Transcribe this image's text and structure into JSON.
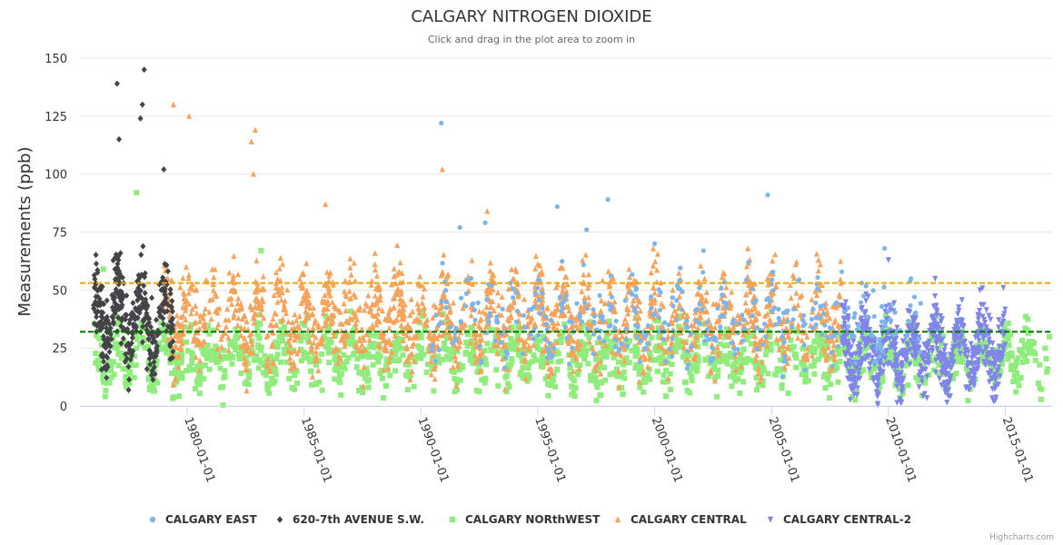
{
  "chart_data": {
    "type": "scatter",
    "title": "CALGARY NITROGEN DIOXIDE",
    "subtitle": "Click and drag in the plot area to zoom in",
    "ylabel": "Measurements (ppb)",
    "xlabel": "",
    "ylim": [
      0,
      150
    ],
    "yticks": [
      0,
      25,
      50,
      75,
      100,
      125,
      150
    ],
    "xlim": [
      "1975-06-01",
      "2017-01-01"
    ],
    "xticks": [
      "1980-01-01",
      "1985-01-01",
      "1990-01-01",
      "1995-01-01",
      "2000-01-01",
      "2005-01-01",
      "2010-01-01",
      "2015-01-01"
    ],
    "grid": true,
    "legend_position": "bottom-center",
    "plot_lines": [
      {
        "value": 53,
        "color": "#f0a30a",
        "style": "dashed"
      },
      {
        "value": 32,
        "color": "#007700",
        "style": "dashed"
      }
    ],
    "series": [
      {
        "name": "CALGARY EAST",
        "color": "#7cb5ec",
        "marker": "circle",
        "x_range": [
          "1990-06-01",
          "2011-06-01"
        ],
        "typical_range": [
          15,
          55
        ],
        "peaks": [
          {
            "x": "1990-11-15",
            "y": 122
          },
          {
            "x": "1991-09-01",
            "y": 77
          },
          {
            "x": "1992-10-01",
            "y": 79
          },
          {
            "x": "1995-11-01",
            "y": 86
          },
          {
            "x": "1997-02-01",
            "y": 76
          },
          {
            "x": "1998-01-01",
            "y": 89
          },
          {
            "x": "2000-01-01",
            "y": 70
          },
          {
            "x": "2002-02-01",
            "y": 67
          },
          {
            "x": "2004-11-01",
            "y": 91
          },
          {
            "x": "2009-11-01",
            "y": 68
          }
        ]
      },
      {
        "name": "620-7th AVENUE S.W.",
        "color": "#434348",
        "marker": "diamond",
        "x_range": [
          "1976-01-01",
          "1979-06-01"
        ],
        "typical_range": [
          12,
          60
        ],
        "peaks": [
          {
            "x": "1977-01-01",
            "y": 139
          },
          {
            "x": "1978-03-01",
            "y": 145
          },
          {
            "x": "1978-02-01",
            "y": 130
          },
          {
            "x": "1978-01-01",
            "y": 124
          },
          {
            "x": "1977-02-01",
            "y": 115
          },
          {
            "x": "1979-01-01",
            "y": 102
          }
        ]
      },
      {
        "name": "CALGARY NORthWEST",
        "color": "#90ed7d",
        "marker": "square",
        "x_range": [
          "1976-01-01",
          "2016-12-01"
        ],
        "typical_range": [
          3,
          35
        ],
        "peaks": [
          {
            "x": "1977-11-01",
            "y": 92
          },
          {
            "x": "1983-03-01",
            "y": 67
          },
          {
            "x": "1976-06-01",
            "y": 59
          }
        ]
      },
      {
        "name": "CALGARY CENTRAL",
        "color": "#f7a35c",
        "marker": "triangle",
        "x_range": [
          "1979-01-01",
          "2008-01-01"
        ],
        "typical_range": [
          12,
          58
        ],
        "peaks": [
          {
            "x": "1979-06-01",
            "y": 130
          },
          {
            "x": "1980-02-01",
            "y": 125
          },
          {
            "x": "1982-12-01",
            "y": 119
          },
          {
            "x": "1982-10-01",
            "y": 114
          },
          {
            "x": "1990-12-01",
            "y": 102
          },
          {
            "x": "1982-11-01",
            "y": 100
          },
          {
            "x": "1985-12-01",
            "y": 87
          },
          {
            "x": "1992-11-01",
            "y": 84
          }
        ]
      },
      {
        "name": "CALGARY CENTRAL-2",
        "color": "#8085e9",
        "marker": "triangle-down",
        "x_range": [
          "2008-01-01",
          "2015-01-01"
        ],
        "typical_range": [
          2,
          42
        ],
        "peaks": [
          {
            "x": "2010-01-01",
            "y": 63
          },
          {
            "x": "2012-01-01",
            "y": 55
          },
          {
            "x": "2013-12-01",
            "y": 50
          },
          {
            "x": "2014-12-01",
            "y": 51
          }
        ]
      }
    ]
  },
  "credits": "Highcharts.com"
}
